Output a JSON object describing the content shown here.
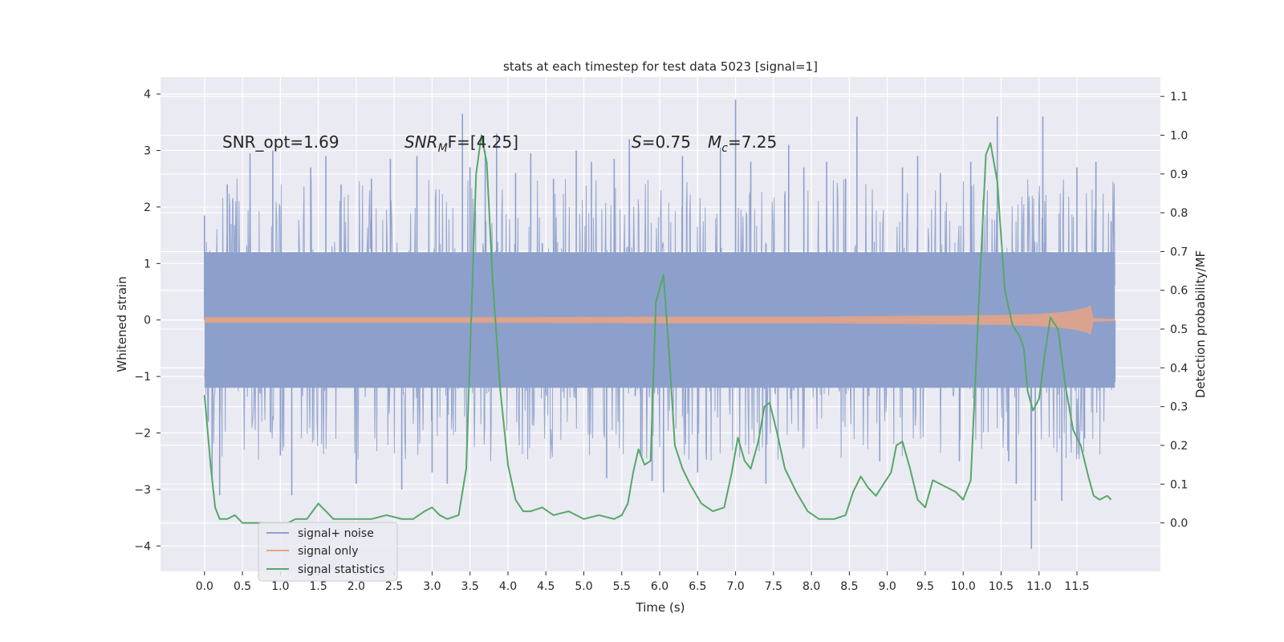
{
  "chart_data": {
    "type": "line",
    "title": "stats at each timestep for test data 5023 [signal=1]",
    "xlabel": "Time (s)",
    "ylabel": "Whitened strain",
    "y2label": "Detection probability/MF",
    "xlim": [
      -0.58,
      12.6
    ],
    "ylim": [
      -4.45,
      4.3
    ],
    "y2lim": [
      -0.125,
      1.15
    ],
    "xticks": [
      0.0,
      0.5,
      1.0,
      1.5,
      2.0,
      2.5,
      3.0,
      3.5,
      4.0,
      4.5,
      5.0,
      5.5,
      6.0,
      6.5,
      7.0,
      7.5,
      8.0,
      8.5,
      9.0,
      9.5,
      10.0,
      10.5,
      11.0,
      11.5
    ],
    "xtick_labels": [
      "0.0",
      "0.5",
      "1.0",
      "1.5",
      "2.0",
      "2.5",
      "3.0",
      "3.5",
      "4.0",
      "4.5",
      "5.0",
      "5.5",
      "6.0",
      "6.5",
      "7.0",
      "7.5",
      "8.0",
      "8.5",
      "9.0",
      "9.5",
      "10.0",
      "10.5",
      "11.0",
      "11.5"
    ],
    "yticks": [
      -4,
      -3,
      -2,
      -1,
      0,
      1,
      2,
      3,
      4
    ],
    "ytick_labels": [
      "−4",
      "−3",
      "−2",
      "−1",
      "0",
      "1",
      "2",
      "3",
      "4"
    ],
    "y2ticks": [
      0.0,
      0.1,
      0.2,
      0.3,
      0.4,
      0.5,
      0.6,
      0.7,
      0.8,
      0.9,
      1.0,
      1.1
    ],
    "y2tick_labels": [
      "0.0",
      "0.1",
      "0.2",
      "0.3",
      "0.4",
      "0.5",
      "0.6",
      "0.7",
      "0.8",
      "0.9",
      "1.0",
      "1.1"
    ],
    "grid": true,
    "legend_position": "lower-left",
    "annotations": {
      "snr_opt": "SNR_opt=1.69",
      "snr_mf_main": "SNR",
      "snr_mf_sub": "M",
      "snr_mf_tail": "F=[4.25]",
      "s_main": "S",
      "s_tail": "=0.75",
      "mc_main": "M",
      "mc_sub": "c",
      "mc_tail": "=7.25"
    },
    "series": [
      {
        "name": "signal+ noise",
        "color": "#8da0cb",
        "axis": "left",
        "t_range": [
          0.0,
          12.0
        ],
        "core_amplitude": 1.2,
        "peaks": [
          {
            "t": 0.0,
            "v": 1.85
          },
          {
            "t": 0.05,
            "v": -1.8
          },
          {
            "t": 0.1,
            "v": -2.85
          },
          {
            "t": 0.2,
            "v": -3.1
          },
          {
            "t": 0.3,
            "v": 2.4
          },
          {
            "t": 0.6,
            "v": 2.95
          },
          {
            "t": 0.9,
            "v": 3.0
          },
          {
            "t": 1.0,
            "v": -2.4
          },
          {
            "t": 1.15,
            "v": -3.1
          },
          {
            "t": 1.4,
            "v": 2.7
          },
          {
            "t": 1.6,
            "v": 2.9
          },
          {
            "t": 1.8,
            "v": 2.4
          },
          {
            "t": 2.0,
            "v": -2.9
          },
          {
            "t": 2.2,
            "v": 2.5
          },
          {
            "t": 2.45,
            "v": 2.85
          },
          {
            "t": 2.6,
            "v": -3.0
          },
          {
            "t": 2.8,
            "v": 2.9
          },
          {
            "t": 3.0,
            "v": -2.7
          },
          {
            "t": 3.2,
            "v": -2.9
          },
          {
            "t": 3.4,
            "v": 3.65
          },
          {
            "t": 3.5,
            "v": 2.7
          },
          {
            "t": 3.7,
            "v": 3.0
          },
          {
            "t": 3.85,
            "v": 3.3
          },
          {
            "t": 4.1,
            "v": 2.6
          },
          {
            "t": 4.3,
            "v": 2.95
          },
          {
            "t": 4.6,
            "v": 2.5
          },
          {
            "t": 4.9,
            "v": 3.0
          },
          {
            "t": 5.1,
            "v": 2.8
          },
          {
            "t": 5.3,
            "v": -2.8
          },
          {
            "t": 5.4,
            "v": 2.85
          },
          {
            "t": 5.6,
            "v": 3.2
          },
          {
            "t": 5.75,
            "v": -2.4
          },
          {
            "t": 5.9,
            "v": -2.85
          },
          {
            "t": 6.05,
            "v": -3.05
          },
          {
            "t": 6.3,
            "v": 2.9
          },
          {
            "t": 6.5,
            "v": -2.7
          },
          {
            "t": 6.8,
            "v": 3.05
          },
          {
            "t": 7.0,
            "v": 3.9
          },
          {
            "t": 7.2,
            "v": 2.8
          },
          {
            "t": 7.4,
            "v": -2.9
          },
          {
            "t": 7.7,
            "v": 3.1
          },
          {
            "t": 7.9,
            "v": 2.7
          },
          {
            "t": 8.2,
            "v": 2.8
          },
          {
            "t": 8.45,
            "v": 2.5
          },
          {
            "t": 8.6,
            "v": 3.6
          },
          {
            "t": 8.9,
            "v": -2.5
          },
          {
            "t": 9.2,
            "v": 2.7
          },
          {
            "t": 9.4,
            "v": 2.9
          },
          {
            "t": 9.7,
            "v": 2.6
          },
          {
            "t": 9.95,
            "v": -2.5
          },
          {
            "t": 10.1,
            "v": 2.8
          },
          {
            "t": 10.45,
            "v": 3.6
          },
          {
            "t": 10.6,
            "v": -2.5
          },
          {
            "t": 10.7,
            "v": -2.9
          },
          {
            "t": 10.9,
            "v": -4.05
          },
          {
            "t": 10.95,
            "v": -3.2
          },
          {
            "t": 11.05,
            "v": 3.6
          },
          {
            "t": 11.3,
            "v": -3.2
          },
          {
            "t": 11.5,
            "v": 2.7
          },
          {
            "t": 11.6,
            "v": -2.1
          },
          {
            "t": 11.75,
            "v": 2.8
          },
          {
            "t": 11.95,
            "v": 1.75
          },
          {
            "t": 12.0,
            "v": -1.1
          }
        ]
      },
      {
        "name": "signal only",
        "color": "#e5a387",
        "axis": "left",
        "t": [
          0.0,
          2.0,
          4.0,
          6.0,
          8.0,
          9.0,
          10.0,
          10.5,
          11.0,
          11.3,
          11.5,
          11.62,
          11.68,
          11.72,
          12.0
        ],
        "amp": [
          0.05,
          0.05,
          0.05,
          0.06,
          0.06,
          0.07,
          0.08,
          0.09,
          0.11,
          0.14,
          0.18,
          0.22,
          0.26,
          0.03,
          0.02
        ]
      },
      {
        "name": "signal statistics",
        "color": "#55a868",
        "axis": "right",
        "t": [
          0.0,
          0.08,
          0.14,
          0.2,
          0.3,
          0.4,
          0.5,
          0.6,
          0.8,
          1.0,
          1.1,
          1.2,
          1.35,
          1.5,
          1.6,
          1.7,
          2.0,
          2.2,
          2.4,
          2.6,
          2.75,
          2.9,
          3.0,
          3.1,
          3.2,
          3.35,
          3.45,
          3.52,
          3.58,
          3.65,
          3.72,
          3.8,
          3.9,
          4.0,
          4.1,
          4.2,
          4.3,
          4.45,
          4.6,
          4.8,
          5.0,
          5.2,
          5.4,
          5.5,
          5.58,
          5.65,
          5.72,
          5.8,
          5.88,
          5.95,
          6.05,
          6.12,
          6.2,
          6.3,
          6.4,
          6.55,
          6.7,
          6.85,
          6.95,
          7.03,
          7.12,
          7.2,
          7.3,
          7.38,
          7.45,
          7.55,
          7.65,
          7.8,
          7.95,
          8.1,
          8.3,
          8.45,
          8.55,
          8.65,
          8.75,
          8.85,
          8.95,
          9.05,
          9.12,
          9.2,
          9.3,
          9.4,
          9.5,
          9.6,
          9.7,
          9.8,
          9.9,
          10.0,
          10.1,
          10.2,
          10.3,
          10.36,
          10.45,
          10.55,
          10.65,
          10.75,
          10.8,
          10.85,
          10.92,
          11.0,
          11.08,
          11.15,
          11.25,
          11.35,
          11.45,
          11.55,
          11.65,
          11.72,
          11.8,
          11.9,
          11.95
        ],
        "values": [
          0.33,
          0.15,
          0.04,
          0.01,
          0.01,
          0.02,
          0.0,
          0.0,
          0.0,
          0.0,
          0.0,
          0.01,
          0.01,
          0.05,
          0.03,
          0.01,
          0.01,
          0.01,
          0.02,
          0.01,
          0.01,
          0.03,
          0.04,
          0.02,
          0.01,
          0.02,
          0.14,
          0.55,
          0.9,
          1.0,
          0.93,
          0.62,
          0.34,
          0.15,
          0.06,
          0.03,
          0.03,
          0.04,
          0.02,
          0.03,
          0.01,
          0.02,
          0.01,
          0.02,
          0.05,
          0.13,
          0.19,
          0.15,
          0.16,
          0.57,
          0.64,
          0.45,
          0.2,
          0.14,
          0.1,
          0.05,
          0.03,
          0.04,
          0.13,
          0.22,
          0.16,
          0.14,
          0.21,
          0.3,
          0.31,
          0.23,
          0.14,
          0.08,
          0.03,
          0.01,
          0.01,
          0.02,
          0.08,
          0.12,
          0.09,
          0.07,
          0.1,
          0.13,
          0.2,
          0.21,
          0.14,
          0.06,
          0.04,
          0.11,
          0.1,
          0.09,
          0.08,
          0.06,
          0.11,
          0.54,
          0.95,
          0.98,
          0.88,
          0.6,
          0.51,
          0.48,
          0.45,
          0.34,
          0.29,
          0.32,
          0.44,
          0.53,
          0.5,
          0.35,
          0.24,
          0.2,
          0.12,
          0.07,
          0.06,
          0.07,
          0.06
        ]
      }
    ]
  }
}
